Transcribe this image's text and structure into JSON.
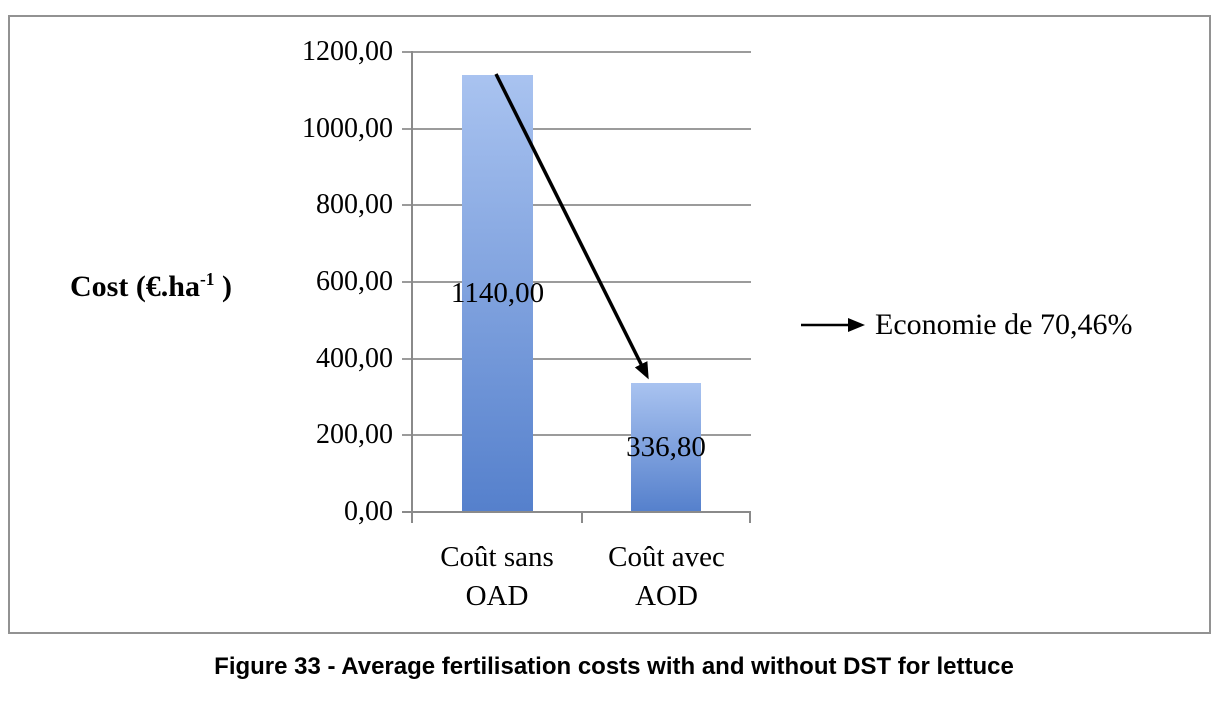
{
  "figure": {
    "caption": "Figure 33 - Average fertilisation costs with and without DST for lettuce"
  },
  "chart_data": {
    "type": "bar",
    "title": "",
    "ylabel": "Cost (€.ha-1 )",
    "ylabel_parts": {
      "base": "Cost (€.ha",
      "superscript": "-1",
      "suffix": " )"
    },
    "categories": [
      "Coût sans OAD",
      "Coût avec AOD"
    ],
    "categories_lines": [
      [
        "Coût sans",
        "OAD"
      ],
      [
        "Coût avec",
        "AOD"
      ]
    ],
    "values": [
      1140.0,
      336.8
    ],
    "value_labels": [
      "1140,00",
      "336,80"
    ],
    "ylim": [
      0,
      1200
    ],
    "ytick_interval": 200,
    "yticks": [
      "1200,00",
      "1000,00",
      "800,00",
      "600,00",
      "400,00",
      "200,00",
      "0,00"
    ],
    "grid": true,
    "legend": "none",
    "annotation": {
      "text": "Economie de 70,46%",
      "arrow_icon": "right-arrow",
      "position": "right-of-plot",
      "decrease_arrow": "from top of first bar to top of second bar"
    },
    "colors": {
      "bar_gradient_top": "#a9c3f0",
      "bar_gradient_bottom": "#5580cc",
      "gridline": "#9b9b9b",
      "axis": "#8a8a8a",
      "arrow": "#000000",
      "frame_border": "#929292"
    }
  }
}
